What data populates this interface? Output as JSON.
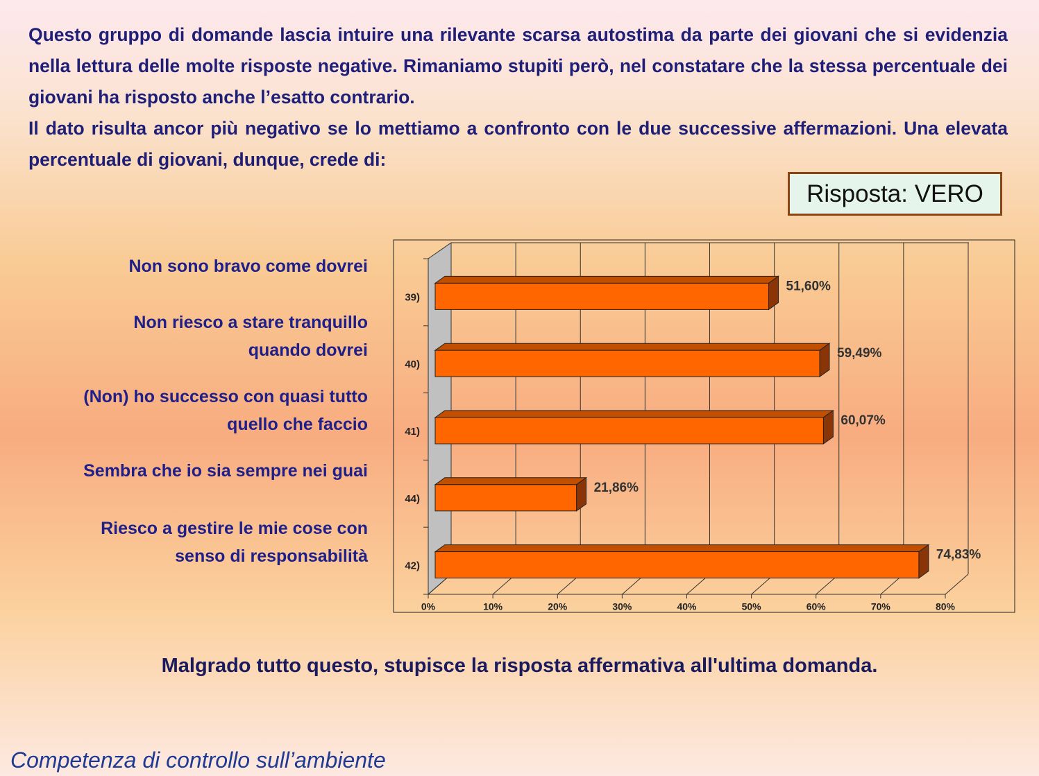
{
  "header": {
    "paragraphs": [
      "Questo gruppo di domande lascia intuire una rilevante scarsa autostima da parte dei giovani che si evidenzia nella lettura delle molte risposte negative. Rimaniamo stupiti però, nel constatare che la stessa percentuale dei giovani ha risposto anche l’esatto contrario.",
      "Il dato risulta ancor più negativo se lo mettiamo a confronto con le due successive affermazioni. Una elevata percentuale di giovani, dunque, crede di:"
    ]
  },
  "answer_box": "Risposta: VERO",
  "statements": [
    [
      "Non sono bravo come dovrei"
    ],
    [
      "Non riesco a stare tranquillo",
      "quando dovrei"
    ],
    [
      "(Non) ho successo con quasi tutto",
      "quello che faccio"
    ],
    [
      "Sembra che io sia sempre nei guai"
    ],
    [
      "Riesco a gestire le mie cose con",
      "senso di responsabilità"
    ]
  ],
  "chart_data": {
    "type": "bar3d",
    "orientation": "horizontal",
    "categories": [
      "39)",
      "40)",
      "41)",
      "44)",
      "42)"
    ],
    "values": [
      51.6,
      59.49,
      60.07,
      21.86,
      74.83
    ],
    "value_labels": [
      "51,60%",
      "59,49%",
      "60,07%",
      "21,86%",
      "74,83%"
    ],
    "color": "#ff6600",
    "xlim": [
      0,
      80
    ],
    "xticks": [
      {
        "value": 0,
        "label": "0%"
      },
      {
        "value": 10,
        "label": "10%"
      },
      {
        "value": 20,
        "label": "20%"
      },
      {
        "value": 30,
        "label": "30%"
      },
      {
        "value": 40,
        "label": "40%"
      },
      {
        "value": 50,
        "label": "50%"
      },
      {
        "value": 60,
        "label": "60%"
      },
      {
        "value": 70,
        "label": "70%"
      },
      {
        "value": 80,
        "label": "80%"
      }
    ],
    "grid": true
  },
  "conclusion": "Malgrado tutto questo, stupisce la risposta affermativa  all'ultima domanda.",
  "footer": "Competenza di controllo sull’ambiente"
}
